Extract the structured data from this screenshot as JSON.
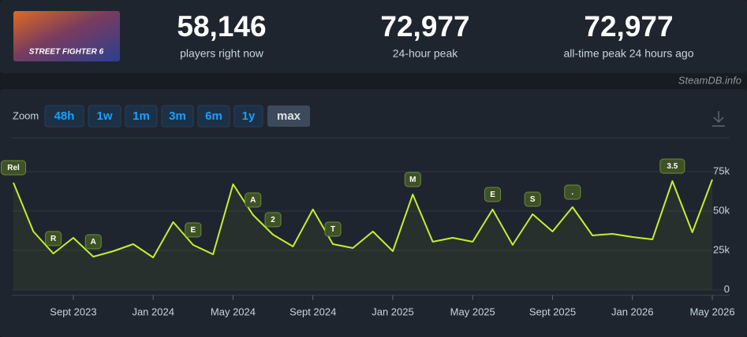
{
  "game_logo": "STREET FIGHTER 6",
  "stats": [
    {
      "value": "58,146",
      "label": "players right now"
    },
    {
      "value": "72,977",
      "label": "24-hour peak"
    },
    {
      "value": "72,977",
      "label": "all-time peak 24 hours ago"
    }
  ],
  "source": "SteamDB.info",
  "zoom": {
    "label": "Zoom",
    "buttons": [
      "48h",
      "1w",
      "1m",
      "3m",
      "6m",
      "1y",
      "max"
    ],
    "active": 6
  },
  "chart_data": {
    "type": "line",
    "color": "#c2f02f",
    "x": [
      "2023-06",
      "2023-07",
      "2023-08",
      "2023-09",
      "2023-10",
      "2023-11",
      "2023-12",
      "2024-01",
      "2024-02",
      "2024-03",
      "2024-04",
      "2024-05",
      "2024-06",
      "2024-07",
      "2024-08",
      "2024-09",
      "2024-10",
      "2024-11",
      "2024-12",
      "2025-01",
      "2025-02",
      "2025-03",
      "2025-04",
      "2025-05",
      "2025-06",
      "2025-07",
      "2025-08",
      "2025-09",
      "2025-10",
      "2025-11",
      "2025-12",
      "2026-01",
      "2026-02",
      "2026-03",
      "2026-04",
      "2026-05"
    ],
    "values": [
      68000,
      37000,
      23000,
      33000,
      21000,
      24500,
      29000,
      20500,
      43000,
      28500,
      22500,
      67000,
      47500,
      35000,
      27500,
      51000,
      29000,
      26500,
      37000,
      24500,
      60500,
      30500,
      33000,
      30500,
      51000,
      28500,
      48000,
      37000,
      52500,
      34500,
      35500,
      33500,
      32000,
      69000,
      36500,
      70000
    ],
    "xlim": [
      "2023-06",
      "2026-05"
    ],
    "xticks": [
      {
        "value": "2023-09",
        "label": "Sept 2023"
      },
      {
        "value": "2024-01",
        "label": "Jan 2024"
      },
      {
        "value": "2024-05",
        "label": "May 2024"
      },
      {
        "value": "2024-09",
        "label": "Sept 2024"
      },
      {
        "value": "2025-01",
        "label": "Jan 2025"
      },
      {
        "value": "2025-05",
        "label": "May 2025"
      },
      {
        "value": "2025-09",
        "label": "Sept 2025"
      },
      {
        "value": "2026-01",
        "label": "Jan 2026"
      },
      {
        "value": "2026-05",
        "label": "May 2026"
      }
    ],
    "ylim": [
      0,
      100000
    ],
    "yticks": [
      0,
      {
        "value": 25000,
        "label": "25k"
      },
      {
        "value": 50000,
        "label": "50k"
      },
      {
        "value": 75000,
        "label": "75k"
      }
    ],
    "grid": true,
    "annotations": [
      {
        "x": "2023-06",
        "text": "Rel"
      },
      {
        "x": "2023-08",
        "text": "R"
      },
      {
        "x": "2023-10",
        "text": "A"
      },
      {
        "x": "2024-03",
        "text": "E"
      },
      {
        "x": "2024-06",
        "text": "A"
      },
      {
        "x": "2024-07",
        "text": "2"
      },
      {
        "x": "2024-10",
        "text": "T"
      },
      {
        "x": "2025-02",
        "text": "M"
      },
      {
        "x": "2025-06",
        "text": "E"
      },
      {
        "x": "2025-08",
        "text": "S"
      },
      {
        "x": "2025-10",
        "text": "."
      },
      {
        "x": "2026-03",
        "text": "3.5"
      }
    ]
  }
}
